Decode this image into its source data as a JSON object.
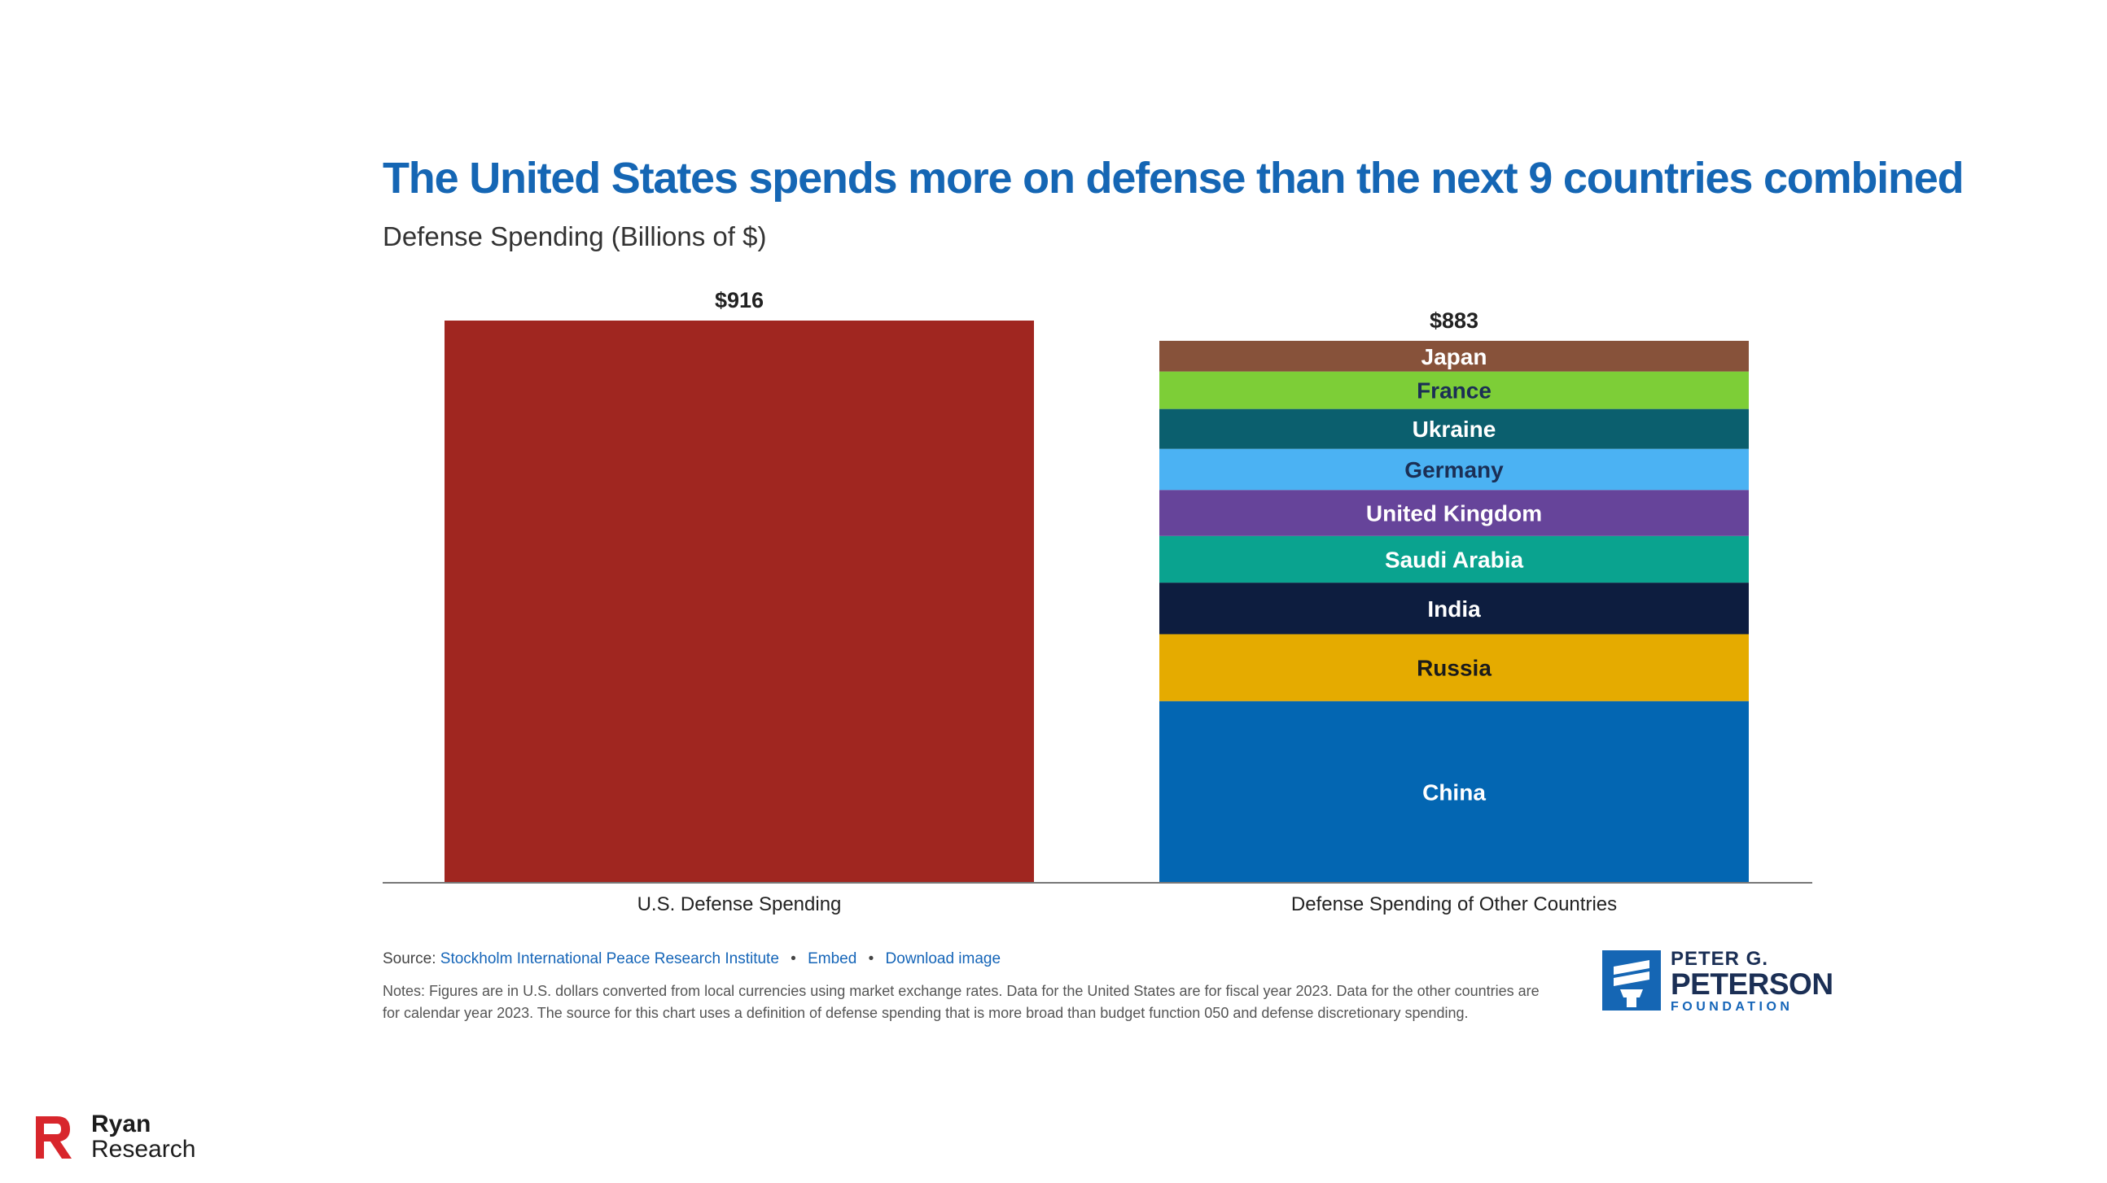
{
  "chart_data": {
    "type": "bar",
    "title": "The United States spends more on defense than the next 9 countries combined",
    "subtitle": "Defense Spending (Billions of $)",
    "categories": [
      "U.S. Defense Spending",
      "Defense Spending of Other Countries"
    ],
    "totals": [
      "$916",
      "$883"
    ],
    "values": [
      916,
      883
    ],
    "stacked": true,
    "ylim": [
      0,
      1000
    ],
    "grid": false,
    "series": [
      {
        "name": "U.S.",
        "label": "",
        "values": [
          916,
          0
        ],
        "color": "#a02620",
        "text_color": "#ffffff"
      },
      {
        "name": "China",
        "label": "China",
        "values": [
          0,
          296
        ],
        "color": "#0366b2",
        "text_color": "#ffffff"
      },
      {
        "name": "Russia",
        "label": "Russia",
        "values": [
          0,
          109
        ],
        "color": "#e5ab00",
        "text_color": "#1b1b1b"
      },
      {
        "name": "India",
        "label": "India",
        "values": [
          0,
          84
        ],
        "color": "#0d1d3f",
        "text_color": "#ffffff"
      },
      {
        "name": "Saudi Arabia",
        "label": "Saudi Arabia",
        "values": [
          0,
          76
        ],
        "color": "#0aa38f",
        "text_color": "#ffffff"
      },
      {
        "name": "United Kingdom",
        "label": "United Kingdom",
        "values": [
          0,
          75
        ],
        "color": "#66449a",
        "text_color": "#ffffff"
      },
      {
        "name": "Germany",
        "label": "Germany",
        "values": [
          0,
          67
        ],
        "color": "#4bb2f3",
        "text_color": "#1b2f55"
      },
      {
        "name": "Ukraine",
        "label": "Ukraine",
        "values": [
          0,
          65
        ],
        "color": "#0b5f6e",
        "text_color": "#ffffff"
      },
      {
        "name": "France",
        "label": "France",
        "values": [
          0,
          61
        ],
        "color": "#7dce37",
        "text_color": "#1b2f55"
      },
      {
        "name": "Japan",
        "label": "Japan",
        "values": [
          0,
          50
        ],
        "color": "#87523a",
        "text_color": "#ffffff"
      }
    ]
  },
  "colors": {
    "title": "#1566b4",
    "axis": "#777777",
    "label": "#222222"
  },
  "source": {
    "prefix": "Source:",
    "link": "Stockholm International Peace Research Institute",
    "embed": "Embed",
    "download": "Download image"
  },
  "notes": "Notes: Figures are in U.S. dollars converted from local currencies using market exchange rates. Data for the United States are for fiscal year 2023. Data for the other countries are for calendar year 2023. The source for this chart uses a definition of defense spending that is more broad than budget function 050 and defense discretionary spending.",
  "pgpf_logo": {
    "icon": "torch-icon",
    "line1": "PETER G.",
    "line2": "PETERSON",
    "line3": "FOUNDATION"
  },
  "ryan_logo": {
    "icon": "ryan-r-icon",
    "line1": "Ryan",
    "line2": "Research"
  }
}
